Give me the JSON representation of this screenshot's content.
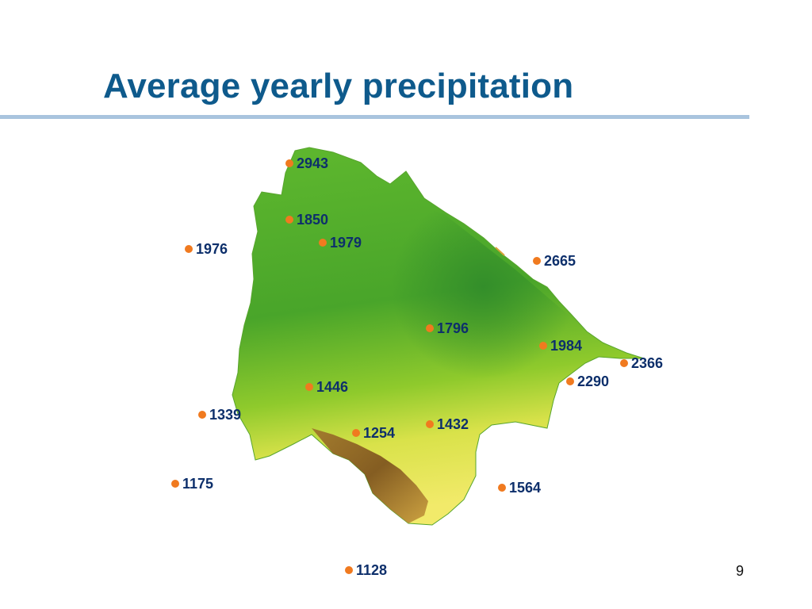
{
  "slide": {
    "title": "Average yearly precipitation",
    "page_number": "9"
  },
  "map": {
    "marker_color": "#f07a1f",
    "label_color": "#0d2f6b",
    "stations": [
      {
        "value": "2943"
      },
      {
        "value": "1850"
      },
      {
        "value": "1979"
      },
      {
        "value": "1976"
      },
      {
        "value": "2665"
      },
      {
        "value": "1796"
      },
      {
        "value": "1984"
      },
      {
        "value": "2366"
      },
      {
        "value": "2290"
      },
      {
        "value": "1446"
      },
      {
        "value": "1339"
      },
      {
        "value": "1432"
      },
      {
        "value": "1254"
      },
      {
        "value": "1175"
      },
      {
        "value": "1564"
      },
      {
        "value": "1128"
      }
    ]
  }
}
